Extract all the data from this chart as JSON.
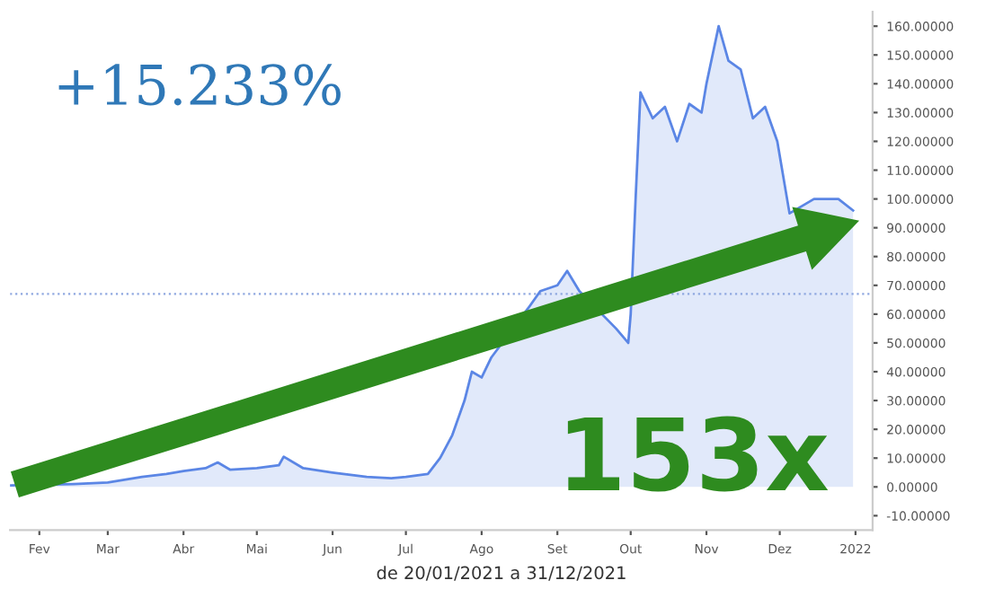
{
  "chart_data": {
    "type": "area",
    "annotations": [
      "+15.233%",
      "153x",
      "de 20/01/2021 a 31/12/2021"
    ],
    "x": [
      "2021-01-20",
      "2021-02-15",
      "2021-03-01",
      "2021-03-15",
      "2021-03-25",
      "2021-04-01",
      "2021-04-10",
      "2021-04-15",
      "2021-04-20",
      "2021-05-01",
      "2021-05-10",
      "2021-05-12",
      "2021-05-20",
      "2021-06-01",
      "2021-06-15",
      "2021-06-25",
      "2021-07-01",
      "2021-07-10",
      "2021-07-15",
      "2021-07-20",
      "2021-07-25",
      "2021-07-28",
      "2021-08-01",
      "2021-08-05",
      "2021-08-20",
      "2021-08-25",
      "2021-09-01",
      "2021-09-05",
      "2021-09-10",
      "2021-09-25",
      "2021-09-30",
      "2021-10-01",
      "2021-10-03",
      "2021-10-05",
      "2021-10-10",
      "2021-10-15",
      "2021-10-20",
      "2021-10-25",
      "2021-10-30",
      "2021-11-01",
      "2021-11-06",
      "2021-11-10",
      "2021-11-15",
      "2021-11-20",
      "2021-11-25",
      "2021-11-30",
      "2021-12-05",
      "2021-12-15",
      "2021-12-25",
      "2021-12-31"
    ],
    "series": [
      {
        "color": "#5b86e5",
        "values": [
          0.5,
          1.0,
          1.5,
          3.5,
          4.5,
          5.5,
          6.5,
          8.5,
          6.0,
          6.5,
          7.5,
          10.5,
          6.5,
          5.0,
          3.5,
          3.0,
          3.5,
          4.5,
          10,
          18,
          30,
          40,
          38,
          45,
          62,
          68,
          70,
          75,
          68,
          55,
          50,
          60,
          100,
          137,
          128,
          132,
          120,
          133,
          130,
          140,
          160,
          148,
          145,
          128,
          132,
          120,
          95,
          100,
          100,
          96
        ]
      }
    ],
    "xlim": [
      "2021-01-20",
      "2022-01-08"
    ],
    "xticks": [
      {
        "value": "2021-02-01",
        "label": "Fev"
      },
      {
        "value": "2021-03-01",
        "label": "Mar"
      },
      {
        "value": "2021-04-01",
        "label": "Abr"
      },
      {
        "value": "2021-05-01",
        "label": "Mai"
      },
      {
        "value": "2021-06-01",
        "label": "Jun"
      },
      {
        "value": "2021-07-01",
        "label": "Jul"
      },
      {
        "value": "2021-08-01",
        "label": "Ago"
      },
      {
        "value": "2021-09-01",
        "label": "Set"
      },
      {
        "value": "2021-10-01",
        "label": "Out"
      },
      {
        "value": "2021-11-01",
        "label": "Nov"
      },
      {
        "value": "2021-12-01",
        "label": "Dez"
      },
      {
        "value": "2022-01-01",
        "label": "2022"
      }
    ],
    "ylim": [
      -15,
      165
    ],
    "yticks": [
      {
        "value": -10,
        "label": "-10.00000"
      },
      {
        "value": 0,
        "label": "0.00000"
      },
      {
        "value": 10,
        "label": "10.00000"
      },
      {
        "value": 20,
        "label": "20.00000"
      },
      {
        "value": 30,
        "label": "30.00000"
      },
      {
        "value": 40,
        "label": "40.00000"
      },
      {
        "value": 50,
        "label": "50.00000"
      },
      {
        "value": 60,
        "label": "60.00000"
      },
      {
        "value": 70,
        "label": "70.00000"
      },
      {
        "value": 80,
        "label": "80.00000"
      },
      {
        "value": 90,
        "label": "90.00000"
      },
      {
        "value": 100,
        "label": "100.00000"
      },
      {
        "value": 110,
        "label": "110.00000"
      },
      {
        "value": 120,
        "label": "120.00000"
      },
      {
        "value": 130,
        "label": "130.00000"
      },
      {
        "value": 140,
        "label": "140.00000"
      },
      {
        "value": 150,
        "label": "150.00000"
      },
      {
        "value": 160,
        "label": "160.00000"
      }
    ],
    "ref_lines": [
      {
        "axis": "y",
        "value": 67,
        "color": "#8fa8e0",
        "line_style": "dotted"
      }
    ]
  }
}
